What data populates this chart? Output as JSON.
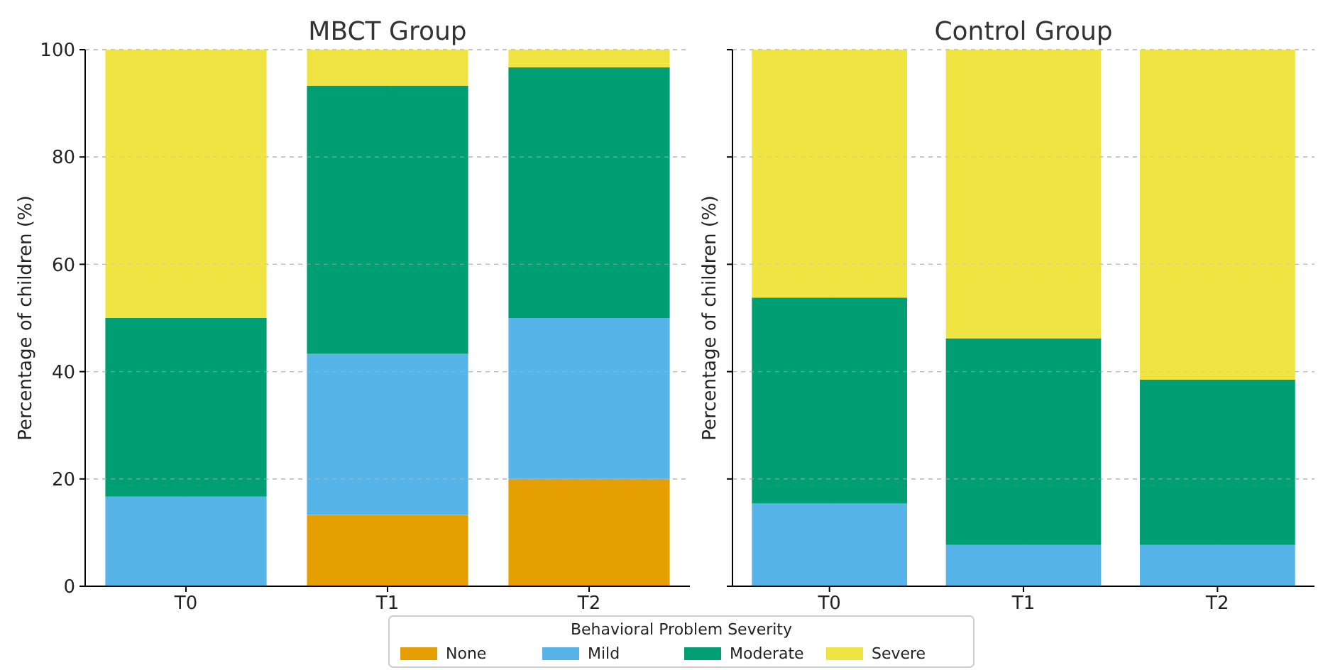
{
  "chart_data": [
    {
      "type": "bar",
      "title": "MBCT Group",
      "ylabel": "Percentage of children (%)",
      "categories": [
        "T0",
        "T1",
        "T2"
      ],
      "stacked": true,
      "ylim": [
        0,
        100
      ],
      "yticks": [
        0,
        20,
        40,
        60,
        80,
        100
      ],
      "grid": true,
      "legend": "bottom",
      "legend_title": "Behavioral Problem Severity",
      "series": [
        {
          "name": "None",
          "color": "#e69f00",
          "values": [
            0,
            13.3,
            20
          ]
        },
        {
          "name": "Mild",
          "color": "#56b4e9",
          "values": [
            16.7,
            30,
            30
          ]
        },
        {
          "name": "Moderate",
          "color": "#009e73",
          "values": [
            33.3,
            50,
            46.7
          ]
        },
        {
          "name": "Severe",
          "color": "#f0e442",
          "values": [
            50,
            6.7,
            3.3
          ]
        }
      ]
    },
    {
      "type": "bar",
      "title": "Control Group",
      "ylabel": "Percentage of children (%)",
      "categories": [
        "T0",
        "T1",
        "T2"
      ],
      "stacked": true,
      "ylim": [
        0,
        100
      ],
      "yticks": [
        0,
        20,
        40,
        60,
        80,
        100
      ],
      "grid": true,
      "tick_labels": "x",
      "series": [
        {
          "color": "#e69f00",
          "values": [
            0,
            0,
            0
          ]
        },
        {
          "color": "#56b4e9",
          "values": [
            15.4,
            7.7,
            7.7
          ]
        },
        {
          "color": "#009e73",
          "values": [
            38.4,
            38.5,
            30.8
          ]
        },
        {
          "color": "#f0e442",
          "values": [
            46.2,
            53.8,
            61.5
          ]
        }
      ]
    }
  ]
}
